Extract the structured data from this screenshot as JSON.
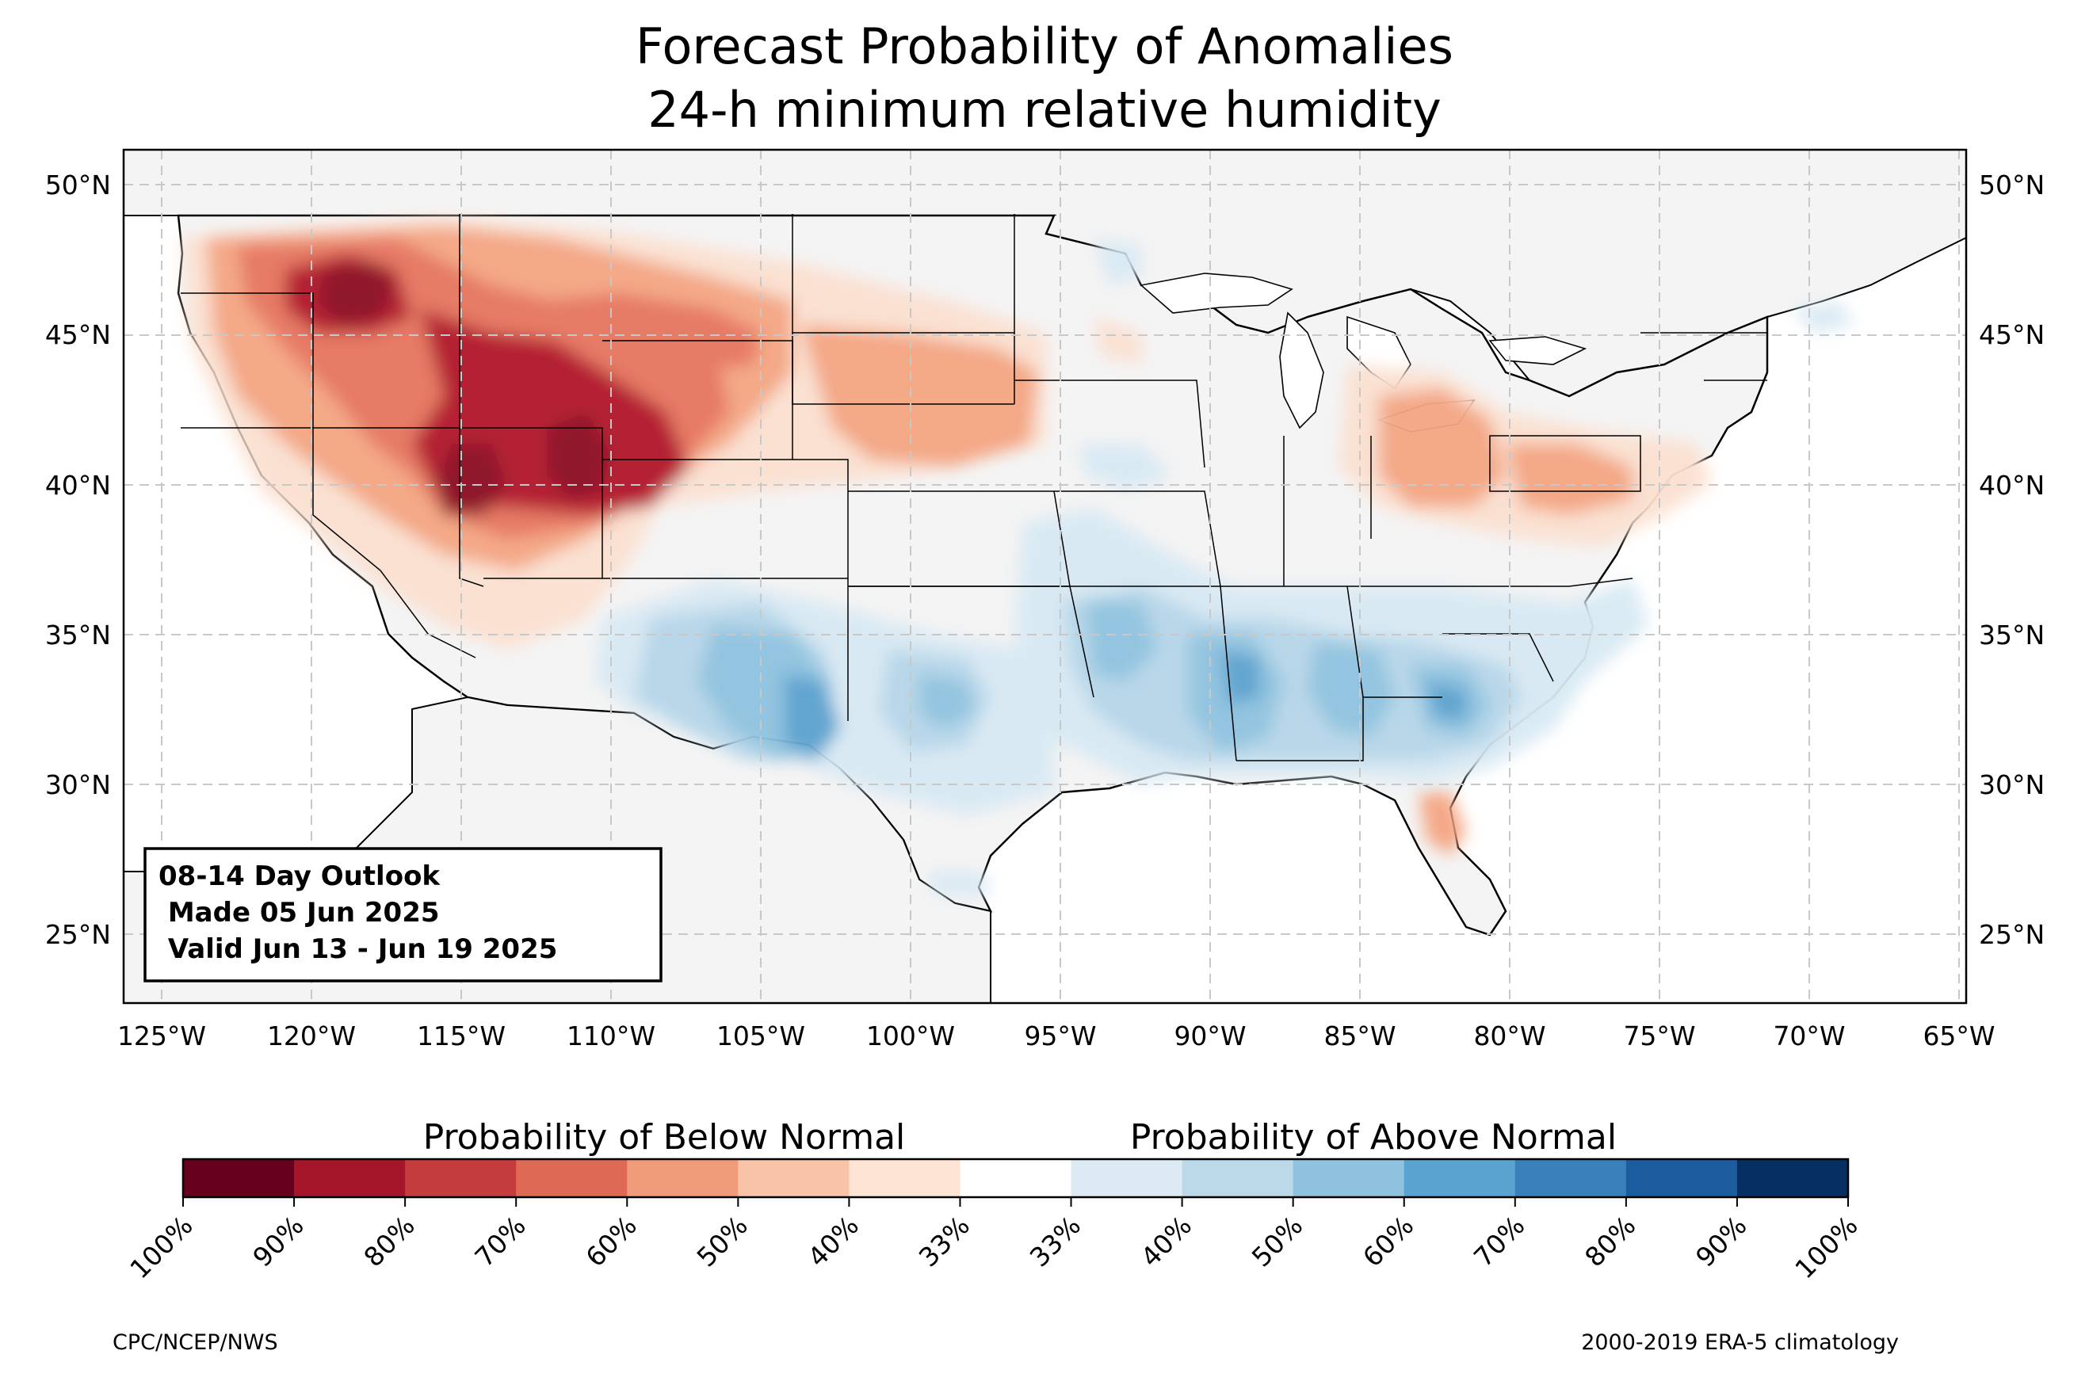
{
  "title": {
    "line1": "Forecast Probability of Anomalies",
    "line2": "24-h minimum relative humidity"
  },
  "map": {
    "lat_labels": [
      "50°N",
      "45°N",
      "40°N",
      "35°N",
      "30°N",
      "25°N"
    ],
    "lon_labels": [
      "125°W",
      "120°W",
      "115°W",
      "110°W",
      "105°W",
      "100°W",
      "95°W",
      "90°W",
      "85°W",
      "80°W",
      "75°W",
      "70°W",
      "65°W"
    ],
    "extent": {
      "lon": [
        -126.3,
        -64.8
      ],
      "lat": [
        22.8,
        51.2
      ]
    },
    "colors": {
      "land": "#f4f4f4",
      "border": "#000000",
      "grid": "#c8c8c8",
      "below": [
        "#fbe0d0",
        "#f4a582",
        "#e6755e",
        "#d6604d",
        "#b2182b",
        "#8b0f22"
      ],
      "above": [
        "#d8e9f3",
        "#b6d6e9",
        "#8ec2df",
        "#5aa1cf",
        "#2f79b5"
      ]
    },
    "below_areas": [
      {
        "name": "Northwest interior",
        "level": 2
      },
      {
        "name": "Great Basin / Utah / Wyoming",
        "level": 3
      },
      {
        "name": "Central Plains",
        "level": 2
      },
      {
        "name": "Ohio Valley / Mid-Atlantic",
        "level": 1
      },
      {
        "name": "Florida",
        "level": 1
      }
    ],
    "above_areas": [
      {
        "name": "Southern High Plains",
        "level": 3
      },
      {
        "name": "Lower Mississippi Valley",
        "level": 3
      },
      {
        "name": "Southeast",
        "level": 3
      },
      {
        "name": "South Texas",
        "level": 1
      },
      {
        "name": "Upper Midwest",
        "level": 1
      }
    ]
  },
  "info_box": {
    "line1": "08-14 Day Outlook",
    "line2": " Made 05 Jun 2025",
    "line3": " Valid Jun 13 - Jun 19 2025"
  },
  "colorbar": {
    "below_label": "Probability of Below Normal",
    "above_label": "Probability of Above Normal",
    "tick_labels": [
      "100%",
      "90%",
      "80%",
      "70%",
      "60%",
      "50%",
      "40%",
      "33%",
      "33%",
      "40%",
      "50%",
      "60%",
      "70%",
      "80%",
      "90%",
      "100%"
    ],
    "colors": [
      "#67001f",
      "#a5162a",
      "#c43c3c",
      "#de6a55",
      "#f09c7b",
      "#f8c3a7",
      "#fde4d4",
      "#ffffff",
      "#dbeaf3",
      "#bcd9ea",
      "#8ec2de",
      "#5aa2cf",
      "#3a81bb",
      "#1b5d9f",
      "#053061"
    ]
  },
  "footer": {
    "left": "CPC/NCEP/NWS",
    "right": "2000-2019 ERA-5 climatology"
  }
}
